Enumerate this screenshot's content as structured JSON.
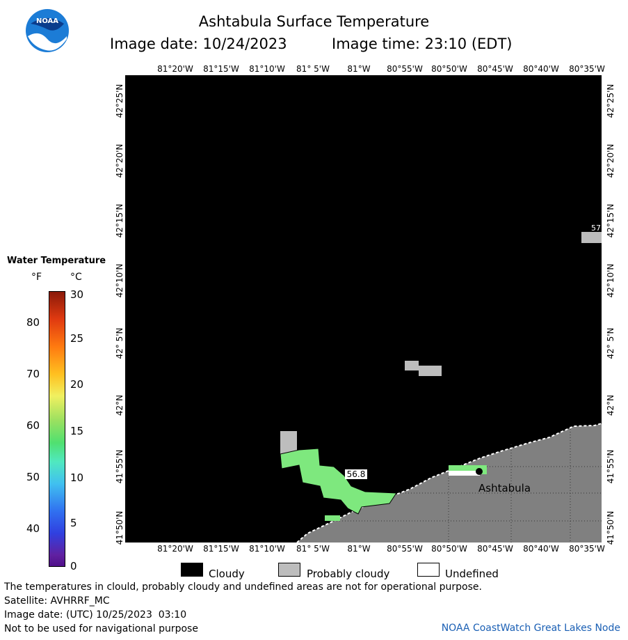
{
  "header": {
    "title": "Ashtabula Surface Temperature",
    "image_date": "Image date: 10/24/2023",
    "image_time": "Image time: 23:10 (EDT)"
  },
  "logo": {
    "text": "NOAA"
  },
  "map": {
    "lon_labels": [
      "81°20'W",
      "81°15'W",
      "81°10'W",
      "81° 5'W",
      "81°W",
      "80°55'W",
      "80°50'W",
      "80°45'W",
      "80°40'W",
      "80°35'W"
    ],
    "lat_labels": [
      "42°25'N",
      "42°20'N",
      "42°15'N",
      "42°10'N",
      "42° 5'N",
      "42°N",
      "41°55'N",
      "41°50'N"
    ],
    "city_label": "Ashtabula",
    "temp_label": "56.8",
    "edge_label": "57"
  },
  "legend": {
    "title": "Water Temperature",
    "unit_f": "°F",
    "unit_c": "°C",
    "f_ticks": [
      "80",
      "70",
      "60",
      "50",
      "40"
    ],
    "c_ticks": [
      "30",
      "25",
      "20",
      "15",
      "10",
      "5",
      "0"
    ]
  },
  "key": {
    "cloudy": "Cloudy",
    "probably_cloudy": "Probably cloudy",
    "undefined": "Undefined"
  },
  "footer": {
    "disclaimer": "The temperatures in clould, probably cloudy and undefined areas are not for operational purpose.",
    "satellite": "Satellite: AVHRRF_MC",
    "utc_date": "Image date: (UTC) 10/25/2023  03:10",
    "navigation": "Not to be used for navigational purpose",
    "credit": "NOAA CoastWatch Great Lakes Node"
  },
  "colors": {
    "cloudy": "#000000",
    "probably_cloudy": "#bdbdbd",
    "land": "#808080",
    "water_temp_green": "#7ee87e"
  }
}
